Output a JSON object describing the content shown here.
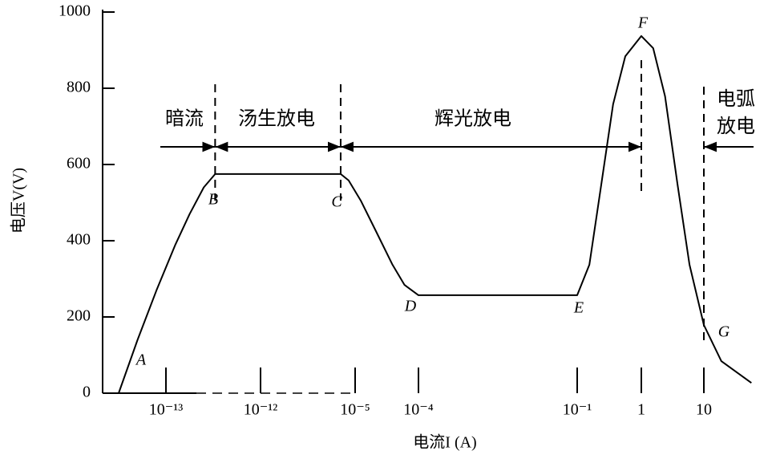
{
  "chart_data": {
    "type": "line",
    "y_label": "电压V(V)",
    "x_label": "电流I (A)",
    "ylim": [
      0,
      1000
    ],
    "yticks": [
      0,
      200,
      400,
      600,
      800,
      1000
    ],
    "xticks": [
      {
        "value": -13,
        "label": "10⁻¹³"
      },
      {
        "value": -12,
        "label": "10⁻¹²"
      },
      {
        "value": -5,
        "label": "10⁻⁵"
      },
      {
        "value": -4,
        "label": "10⁻⁴"
      },
      {
        "value": -1,
        "label": "10⁻¹"
      },
      {
        "value": 0,
        "label": "1"
      },
      {
        "value": 1,
        "label": "10"
      }
    ],
    "color": "#000000",
    "x": [
      -13.5,
      -13.3,
      -13.1,
      -12.9,
      -12.75,
      -12.6,
      -12.48,
      -6.07,
      -5.48,
      -4.91,
      -4.66,
      -4.41,
      -4.22,
      -4.0,
      -1.0,
      -0.81,
      -0.625,
      -0.44,
      -0.25,
      0,
      0.19,
      0.38,
      0.58,
      0.77,
      1.0,
      1.28,
      1.76
    ],
    "values": [
      0,
      140,
      270,
      390,
      470,
      540,
      575,
      575,
      558,
      505,
      421,
      337,
      284,
      257,
      257,
      337,
      547,
      758,
      884,
      937,
      905,
      779,
      547,
      337,
      179,
      84,
      27
    ],
    "points": [
      "A",
      "B",
      "C",
      "D",
      "E",
      "F",
      "G"
    ],
    "boundaries": [
      -12.48,
      -6.07,
      0,
      1
    ],
    "regions": [
      "暗流",
      "汤生放电",
      "辉光放电",
      "电弧放电"
    ]
  }
}
